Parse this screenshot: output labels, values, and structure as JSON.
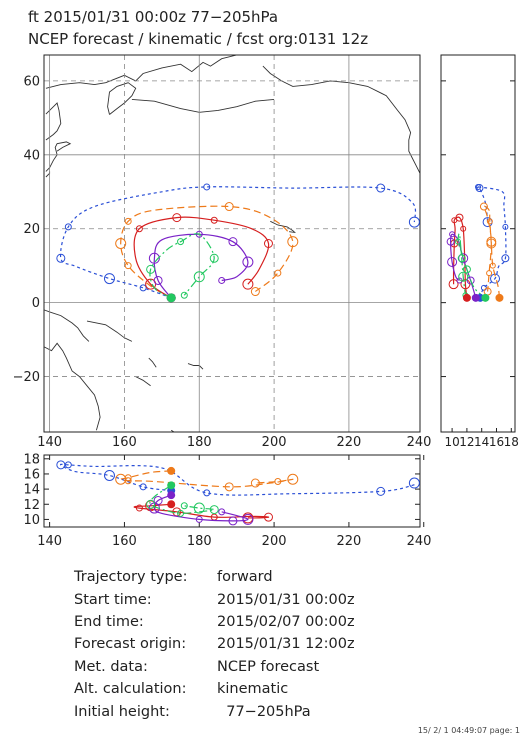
{
  "header": {
    "line1": "ft 2015/01/31 00:00z  77−205hPa",
    "line2": "NCEP forecast / kinematic / fcst org:0131 12z"
  },
  "info": [
    {
      "key": "Trajectory type:",
      "value": "forward"
    },
    {
      "key": "Start time:",
      "value": "2015/01/31 00:00z"
    },
    {
      "key": "End time:",
      "value": "2015/02/07 00:00z"
    },
    {
      "key": "Forecast origin:",
      "value": "2015/01/31 12:00z"
    },
    {
      "key": "Met. data:",
      "value": "NCEP forecast"
    },
    {
      "key": "Alt. calculation:",
      "value": "kinematic"
    },
    {
      "key": "Initial height:",
      "value": "  77−205hPa"
    }
  ],
  "footer": "15/ 2/ 1 04:49:07 page: 1",
  "chart_data": {
    "type": "trajectory",
    "start": {
      "lon": 172.5,
      "lat": 1.3
    },
    "map": {
      "xlim": [
        138.5,
        239
      ],
      "ylim": [
        -35,
        67
      ],
      "xticks": [
        140,
        160,
        180,
        200,
        220,
        240
      ],
      "xtick_labels": [
        "140",
        "160",
        "180",
        "200",
        "220",
        "240"
      ],
      "yticks": [
        -20,
        0,
        20,
        40,
        60
      ],
      "ytick_labels": [
        "−20",
        "0",
        "20",
        "40",
        "60"
      ],
      "grid": true
    },
    "height_panel": {
      "xlim": [
        138.5,
        239
      ],
      "ylim": [
        9,
        18.5
      ],
      "yticks": [
        10,
        12,
        14,
        16,
        18
      ],
      "ytick_labels": [
        "10",
        "12",
        "14",
        "16",
        "18"
      ]
    },
    "side_panel": {
      "xlim": [
        8.5,
        18.5
      ],
      "xticks": [
        10,
        12,
        14,
        16,
        18
      ],
      "xtick_labels": [
        "10",
        "12",
        "14",
        "16",
        "18"
      ]
    },
    "series": [
      {
        "color": "#2a4fd6",
        "dash": "3,3",
        "points": [
          [
            172.5,
            1.3,
            13.8
          ],
          [
            165,
            4,
            14.3
          ],
          [
            156,
            6.5,
            15.8
          ],
          [
            147,
            9.8,
            16.3
          ],
          [
            143,
            12,
            17.2
          ],
          [
            145,
            20.5,
            17.2
          ],
          [
            152,
            26,
            17.0
          ],
          [
            170,
            30,
            16.8
          ],
          [
            182,
            31.3,
            13.5
          ],
          [
            205,
            31,
            13.4
          ],
          [
            228.5,
            31,
            13.7
          ],
          [
            237,
            27,
            14.5
          ],
          [
            237.5,
            21.8,
            14.8
          ]
        ],
        "markers": [
          [
            182,
            31.3
          ],
          [
            228.5,
            31
          ],
          [
            237.5,
            21.8
          ],
          [
            145,
            20.5
          ],
          [
            143,
            12
          ],
          [
            156,
            6.5
          ],
          [
            165,
            4
          ]
        ]
      },
      {
        "color": "#ee7a1a",
        "dash": "7,4",
        "points": [
          [
            172.5,
            1.3,
            16.4
          ],
          [
            167,
            4.5,
            16.2
          ],
          [
            161,
            10,
            15.5
          ],
          [
            159,
            16,
            15.3
          ],
          [
            161,
            22,
            15.1
          ],
          [
            168,
            25,
            15.0
          ],
          [
            188,
            26,
            14.3
          ],
          [
            199,
            23,
            14.8
          ],
          [
            205,
            16.5,
            15.3
          ],
          [
            201,
            8,
            15.0
          ],
          [
            195,
            3,
            14.8
          ]
        ],
        "markers": [
          [
            161,
            22
          ],
          [
            188,
            26
          ],
          [
            205,
            16.5
          ],
          [
            201,
            8
          ],
          [
            195,
            3
          ],
          [
            159,
            16
          ],
          [
            161,
            10
          ]
        ]
      },
      {
        "color": "#d61f1f",
        "dash": "",
        "points": [
          [
            172.5,
            1.3,
            12.0
          ],
          [
            167,
            5,
            11.8
          ],
          [
            163,
            12,
            11.7
          ],
          [
            164,
            20,
            11.5
          ],
          [
            174,
            23,
            11.0
          ],
          [
            184,
            22.3,
            10.3
          ],
          [
            194,
            20,
            10.4
          ],
          [
            198.5,
            16,
            10.3
          ],
          [
            196,
            9,
            10.2
          ],
          [
            193,
            5,
            10.2
          ]
        ],
        "markers": [
          [
            184,
            22.3
          ],
          [
            198.5,
            16
          ],
          [
            193,
            5
          ],
          [
            164,
            20
          ],
          [
            174,
            23
          ],
          [
            167,
            5
          ]
        ]
      },
      {
        "color": "#7a22c8",
        "dash": "",
        "points": [
          [
            172.5,
            1.3,
            13.2
          ],
          [
            169,
            6,
            12.5
          ],
          [
            168,
            12,
            11.5
          ],
          [
            170,
            17,
            10.8
          ],
          [
            180,
            18.5,
            10.0
          ],
          [
            189,
            16.5,
            9.8
          ],
          [
            193,
            11,
            10.0
          ],
          [
            190,
            7,
            10.5
          ],
          [
            186,
            6,
            11.0
          ]
        ],
        "markers": [
          [
            180,
            18.5
          ],
          [
            189,
            16.5
          ],
          [
            193,
            11
          ],
          [
            186,
            6
          ],
          [
            169,
            6
          ],
          [
            168,
            12
          ]
        ]
      },
      {
        "color": "#22c860",
        "dash": "8,3,2,3",
        "points": [
          [
            172.5,
            1.3,
            14.5
          ],
          [
            168,
            4,
            13.0
          ],
          [
            167,
            9,
            12.0
          ],
          [
            171,
            14,
            11.2
          ],
          [
            175,
            16.5,
            10.8
          ],
          [
            180,
            18.5,
            11.0
          ],
          [
            184,
            12,
            11.3
          ],
          [
            180,
            7,
            11.5
          ],
          [
            176,
            2,
            11.8
          ]
        ],
        "markers": [
          [
            175,
            16.5
          ],
          [
            184,
            12
          ],
          [
            180,
            7
          ],
          [
            176,
            2
          ],
          [
            167,
            9
          ]
        ]
      }
    ]
  }
}
